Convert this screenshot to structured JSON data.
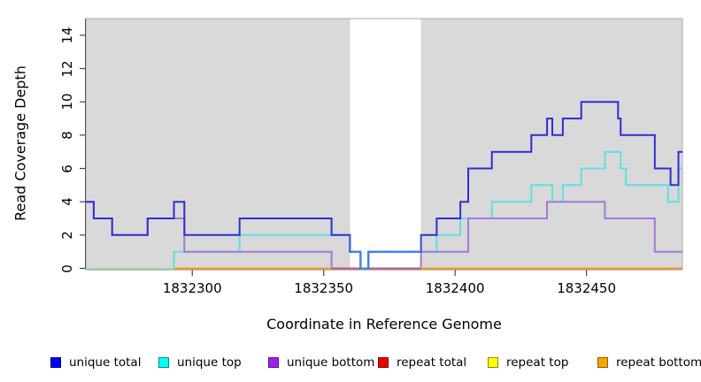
{
  "chart_data": {
    "type": "line",
    "subtype": "step",
    "title": "",
    "xlabel": "Coordinate in Reference Genome",
    "ylabel": "Read Coverage Depth",
    "xlim": [
      1832259.5,
      1832486.5
    ],
    "ylim": [
      0,
      15
    ],
    "x_ticks": [
      1832300,
      1832350,
      1832400,
      1832450
    ],
    "y_ticks": [
      0,
      2,
      4,
      6,
      8,
      10,
      12,
      14
    ],
    "plot_bg_color": "#d9d9d9",
    "grid": false,
    "legend_position": "bottom",
    "gap_region": {
      "x_start": 1832360,
      "x_end": 1832387,
      "color": "#ffffff"
    },
    "gap_overlay_line_color": "#3d7ff2",
    "series": [
      {
        "name": "unique total",
        "legend_color": "#0000ff",
        "line_color": "#2e2ed6",
        "points": [
          [
            1832259.5,
            4
          ],
          [
            1832262.5,
            3
          ],
          [
            1832269.5,
            2
          ],
          [
            1832283,
            3
          ],
          [
            1832293,
            4
          ],
          [
            1832297,
            2
          ],
          [
            1832318,
            3
          ],
          [
            1832353,
            2
          ],
          [
            1832360,
            1
          ],
          [
            1832364,
            0
          ],
          [
            1832367,
            1
          ],
          [
            1832387,
            2
          ],
          [
            1832393,
            3
          ],
          [
            1832402,
            4
          ],
          [
            1832405,
            6
          ],
          [
            1832414,
            7
          ],
          [
            1832429,
            8
          ],
          [
            1832435,
            9
          ],
          [
            1832437,
            8
          ],
          [
            1832441,
            9
          ],
          [
            1832448,
            10
          ],
          [
            1832462,
            9
          ],
          [
            1832463,
            8
          ],
          [
            1832476,
            6
          ],
          [
            1832482,
            5
          ],
          [
            1832485,
            7
          ]
        ]
      },
      {
        "name": "unique top",
        "legend_color": "#00ffff",
        "line_color": "#5fdfe6",
        "points": [
          [
            1832259.5,
            0
          ],
          [
            1832293,
            1
          ],
          [
            1832318,
            2
          ],
          [
            1832360,
            1
          ],
          [
            1832364,
            0
          ],
          [
            1832367,
            1
          ],
          [
            1832393,
            2
          ],
          [
            1832402,
            3
          ],
          [
            1832414,
            4
          ],
          [
            1832429,
            5
          ],
          [
            1832437,
            4
          ],
          [
            1832441,
            5
          ],
          [
            1832448,
            6
          ],
          [
            1832457,
            7
          ],
          [
            1832463,
            6
          ],
          [
            1832465,
            5
          ],
          [
            1832481,
            4
          ],
          [
            1832485,
            6
          ]
        ]
      },
      {
        "name": "unique bottom",
        "legend_color": "#a020f0",
        "line_color": "#a478d8",
        "points": [
          [
            1832259.5,
            4
          ],
          [
            1832262.5,
            3
          ],
          [
            1832269.5,
            2
          ],
          [
            1832283,
            3
          ],
          [
            1832297,
            1
          ],
          [
            1832353,
            0
          ],
          [
            1832387,
            1
          ],
          [
            1832405,
            3
          ],
          [
            1832435,
            4
          ],
          [
            1832457,
            3
          ],
          [
            1832476,
            1
          ]
        ]
      },
      {
        "name": "repeat total",
        "legend_color": "#ee0000",
        "line_color": "#dd2222",
        "points": [
          [
            1832259.5,
            0
          ]
        ]
      },
      {
        "name": "repeat top",
        "legend_color": "#ffff00",
        "line_color": "#f2e122",
        "points": [
          [
            1832259.5,
            0
          ]
        ]
      },
      {
        "name": "repeat bottom",
        "legend_color": "#ffa500",
        "line_color": "#ff9d1e",
        "points": [
          [
            1832259.5,
            0
          ]
        ]
      }
    ],
    "zero_overlap_segments": [
      {
        "x_start": 1832259.5,
        "x_end": 1832293,
        "color": "#a9e5b2"
      },
      {
        "x_start": 1832353,
        "x_end": 1832387,
        "color": "#c65a7c"
      }
    ]
  },
  "legend_item_lefts": [
    57,
    179,
    303,
    427,
    551,
    675
  ]
}
